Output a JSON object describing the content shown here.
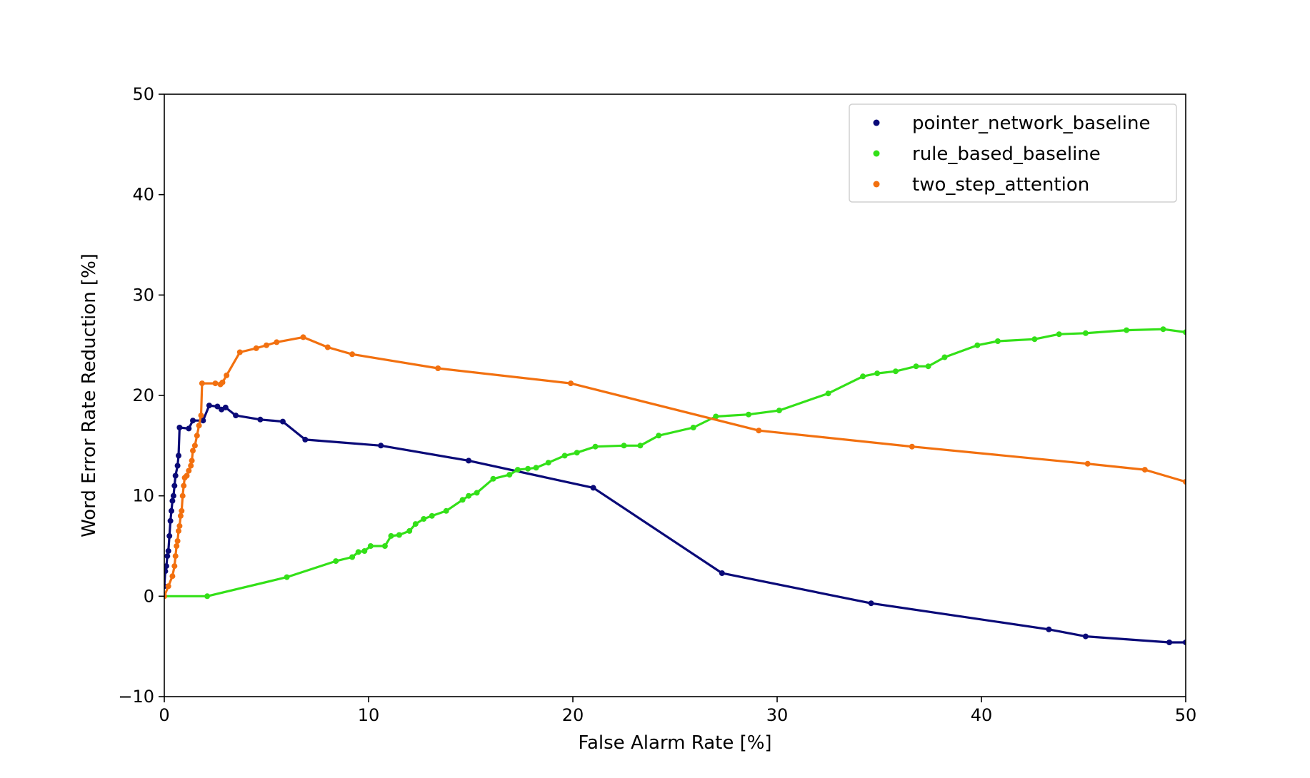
{
  "chart_data": {
    "type": "line",
    "title": "",
    "xlabel": "False Alarm Rate [%]",
    "ylabel": "Word Error Rate Reduction [%]",
    "xlim": [
      0,
      50
    ],
    "ylim": [
      -10,
      50
    ],
    "xticks": [
      0,
      10,
      20,
      30,
      40,
      50
    ],
    "yticks": [
      -10,
      0,
      10,
      20,
      30,
      40,
      50
    ],
    "xtick_labels": [
      "0",
      "10",
      "20",
      "30",
      "40",
      "50"
    ],
    "ytick_labels": [
      "−10",
      "0",
      "10",
      "20",
      "30",
      "40",
      "50"
    ],
    "grid": false,
    "legend_position": "top-right",
    "markers": true,
    "series": [
      {
        "name": "pointer_network_baseline",
        "color": "#0a0a78",
        "points": [
          [
            0.0,
            1.0
          ],
          [
            0.05,
            2.5
          ],
          [
            0.1,
            3.0
          ],
          [
            0.15,
            4.0
          ],
          [
            0.2,
            4.5
          ],
          [
            0.25,
            6.0
          ],
          [
            0.3,
            7.5
          ],
          [
            0.35,
            8.5
          ],
          [
            0.4,
            9.5
          ],
          [
            0.45,
            10.0
          ],
          [
            0.5,
            11.0
          ],
          [
            0.55,
            12.0
          ],
          [
            0.65,
            13.0
          ],
          [
            0.7,
            14.0
          ],
          [
            0.75,
            16.8
          ],
          [
            1.2,
            16.7
          ],
          [
            1.4,
            17.5
          ],
          [
            1.9,
            17.5
          ],
          [
            2.2,
            19.0
          ],
          [
            2.6,
            18.9
          ],
          [
            2.8,
            18.6
          ],
          [
            3.0,
            18.8
          ],
          [
            3.5,
            18.0
          ],
          [
            4.7,
            17.6
          ],
          [
            5.8,
            17.4
          ],
          [
            6.9,
            15.6
          ],
          [
            10.6,
            15.0
          ],
          [
            14.9,
            13.5
          ],
          [
            21.0,
            10.8
          ],
          [
            27.3,
            2.3
          ],
          [
            34.6,
            -0.7
          ],
          [
            43.3,
            -3.3
          ],
          [
            45.1,
            -4.0
          ],
          [
            49.2,
            -4.6
          ],
          [
            50.0,
            -4.6
          ]
        ]
      },
      {
        "name": "rule_based_baseline",
        "color": "#33e018",
        "points": [
          [
            0.0,
            0.0
          ],
          [
            2.1,
            0.0
          ],
          [
            6.0,
            1.9
          ],
          [
            8.4,
            3.5
          ],
          [
            9.2,
            3.9
          ],
          [
            9.5,
            4.4
          ],
          [
            9.8,
            4.5
          ],
          [
            10.1,
            5.0
          ],
          [
            10.8,
            5.0
          ],
          [
            11.1,
            6.0
          ],
          [
            11.5,
            6.1
          ],
          [
            12.0,
            6.5
          ],
          [
            12.3,
            7.2
          ],
          [
            12.7,
            7.7
          ],
          [
            13.1,
            8.0
          ],
          [
            13.8,
            8.5
          ],
          [
            14.6,
            9.6
          ],
          [
            14.9,
            10.0
          ],
          [
            15.3,
            10.3
          ],
          [
            16.1,
            11.7
          ],
          [
            16.9,
            12.1
          ],
          [
            17.3,
            12.6
          ],
          [
            17.8,
            12.7
          ],
          [
            18.2,
            12.8
          ],
          [
            18.8,
            13.3
          ],
          [
            19.6,
            14.0
          ],
          [
            20.2,
            14.3
          ],
          [
            21.1,
            14.9
          ],
          [
            22.5,
            15.0
          ],
          [
            23.3,
            15.0
          ],
          [
            24.2,
            16.0
          ],
          [
            25.9,
            16.8
          ],
          [
            27.0,
            17.9
          ],
          [
            28.6,
            18.1
          ],
          [
            30.1,
            18.5
          ],
          [
            32.5,
            20.2
          ],
          [
            34.2,
            21.9
          ],
          [
            34.9,
            22.2
          ],
          [
            35.8,
            22.4
          ],
          [
            36.8,
            22.9
          ],
          [
            37.4,
            22.9
          ],
          [
            38.2,
            23.8
          ],
          [
            39.8,
            25.0
          ],
          [
            40.8,
            25.4
          ],
          [
            42.6,
            25.6
          ],
          [
            43.8,
            26.1
          ],
          [
            45.1,
            26.2
          ],
          [
            47.1,
            26.5
          ],
          [
            48.9,
            26.6
          ],
          [
            50.0,
            26.3
          ]
        ]
      },
      {
        "name": "two_step_attention",
        "color": "#f2700f",
        "points": [
          [
            0.0,
            0.0
          ],
          [
            0.2,
            1.0
          ],
          [
            0.4,
            2.0
          ],
          [
            0.5,
            3.0
          ],
          [
            0.55,
            4.0
          ],
          [
            0.6,
            5.0
          ],
          [
            0.65,
            5.5
          ],
          [
            0.7,
            6.5
          ],
          [
            0.75,
            7.0
          ],
          [
            0.8,
            8.0
          ],
          [
            0.85,
            8.5
          ],
          [
            0.9,
            10.0
          ],
          [
            0.95,
            11.0
          ],
          [
            1.0,
            11.8
          ],
          [
            1.1,
            12.0
          ],
          [
            1.2,
            12.5
          ],
          [
            1.3,
            13.0
          ],
          [
            1.35,
            13.5
          ],
          [
            1.4,
            14.5
          ],
          [
            1.5,
            15.0
          ],
          [
            1.6,
            16.0
          ],
          [
            1.7,
            17.0
          ],
          [
            1.8,
            18.0
          ],
          [
            1.85,
            21.2
          ],
          [
            2.5,
            21.2
          ],
          [
            2.75,
            21.1
          ],
          [
            2.85,
            21.3
          ],
          [
            3.05,
            22.0
          ],
          [
            3.7,
            24.3
          ],
          [
            4.5,
            24.7
          ],
          [
            5.0,
            25.0
          ],
          [
            5.5,
            25.3
          ],
          [
            6.8,
            25.8
          ],
          [
            8.0,
            24.8
          ],
          [
            9.2,
            24.1
          ],
          [
            13.4,
            22.7
          ],
          [
            19.9,
            21.2
          ],
          [
            29.1,
            16.5
          ],
          [
            36.6,
            14.9
          ],
          [
            45.2,
            13.2
          ],
          [
            48.0,
            12.6
          ],
          [
            50.0,
            11.4
          ]
        ]
      }
    ]
  }
}
